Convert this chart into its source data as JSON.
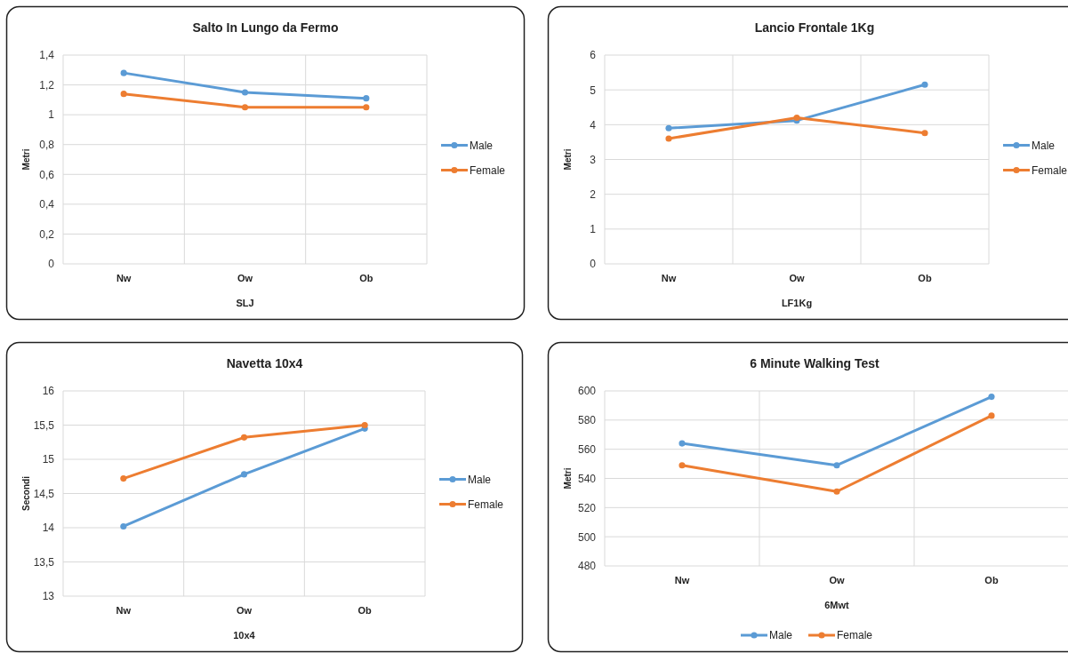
{
  "chart_data": [
    {
      "type": "line",
      "title": "Salto In Lungo da Fermo",
      "xlabel": "SLJ",
      "ylabel": "Metri",
      "categories": [
        "Nw",
        "Ow",
        "Ob"
      ],
      "ylim": [
        0,
        1.4
      ],
      "yticks": [
        0,
        {
          "value": 0.2,
          "label": "0,2"
        },
        {
          "value": 0.4,
          "label": "0,4"
        },
        {
          "value": 0.6,
          "label": "0,6"
        },
        {
          "value": 0.8,
          "label": "0,8"
        },
        1,
        {
          "value": 1.2,
          "label": "1,2"
        },
        {
          "value": 1.4,
          "label": "1,4"
        }
      ],
      "grid": true,
      "legend": "right",
      "marker": "circle",
      "series": [
        {
          "name": "Male",
          "color": "#5b9bd5",
          "values": [
            1.28,
            1.15,
            1.11
          ]
        },
        {
          "name": "Female",
          "color": "#ed7d31",
          "values": [
            1.14,
            1.05,
            1.05
          ]
        }
      ]
    },
    {
      "type": "line",
      "title": "Lancio Frontale 1Kg",
      "xlabel": "LF1Kg",
      "ylabel": "Metri",
      "categories": [
        "Nw",
        "Ow",
        "Ob"
      ],
      "ylim": [
        0,
        6
      ],
      "yticks": [
        0,
        1,
        2,
        3,
        4,
        5,
        6
      ],
      "grid": true,
      "legend": "right",
      "marker": "circle",
      "series": [
        {
          "name": "Male",
          "color": "#5b9bd5",
          "values": [
            3.9,
            4.12,
            5.15
          ]
        },
        {
          "name": "Female",
          "color": "#ed7d31",
          "values": [
            3.6,
            4.2,
            3.76
          ]
        }
      ]
    },
    {
      "type": "line",
      "title": "Navetta 10x4",
      "xlabel": "10x4",
      "ylabel": "Secondi",
      "categories": [
        "Nw",
        "Ow",
        "Ob"
      ],
      "ylim": [
        13,
        16
      ],
      "yticks": [
        13,
        {
          "value": 13.5,
          "label": "13,5"
        },
        14,
        {
          "value": 14.5,
          "label": "14,5"
        },
        15,
        {
          "value": 15.5,
          "label": "15,5"
        },
        16
      ],
      "grid": true,
      "legend": "right",
      "marker": "circle",
      "series": [
        {
          "name": "Male",
          "color": "#5b9bd5",
          "values": [
            14.02,
            14.78,
            15.45
          ]
        },
        {
          "name": "Female",
          "color": "#ed7d31",
          "values": [
            14.72,
            15.32,
            15.5
          ]
        }
      ]
    },
    {
      "type": "line",
      "title": "6 Minute Walking Test",
      "xlabel": "6Mwt",
      "ylabel": "Metri",
      "categories": [
        "Nw",
        "Ow",
        "Ob"
      ],
      "ylim": [
        480,
        600
      ],
      "yticks": [
        480,
        500,
        520,
        540,
        560,
        580,
        600
      ],
      "grid": true,
      "legend": "bottom",
      "marker": "circle",
      "series": [
        {
          "name": "Male",
          "color": "#5b9bd5",
          "values": [
            564,
            549,
            596
          ]
        },
        {
          "name": "Female",
          "color": "#ed7d31",
          "values": [
            549,
            531,
            583
          ]
        }
      ]
    }
  ]
}
